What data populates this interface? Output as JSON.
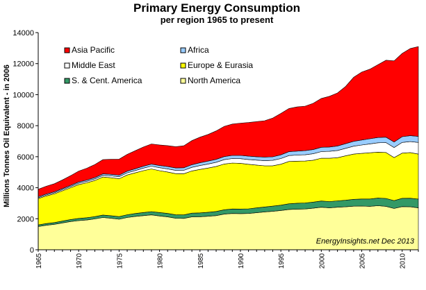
{
  "chart_data": {
    "type": "area",
    "title": "Primary Energy Consumption",
    "subtitle": "per region 1965 to present",
    "ylabel": "Millions Tonnes Oil Equivalent - in 2006",
    "xlabel": "",
    "ylim": [
      0,
      14000
    ],
    "xlim": [
      1965,
      2012
    ],
    "y_ticks": [
      0,
      2000,
      4000,
      6000,
      8000,
      10000,
      12000,
      14000
    ],
    "y_tick_labels": [
      "0",
      "2000",
      "4000",
      "6000",
      "8000",
      "10000",
      "12000",
      "14000"
    ],
    "x_ticks": [
      1965,
      1970,
      1975,
      1980,
      1985,
      1990,
      1995,
      2000,
      2005,
      2010
    ],
    "x_tick_labels": [
      "1965",
      "1970",
      "1975",
      "1980",
      "1985",
      "1990",
      "1995",
      "2000",
      "2005",
      "2010"
    ],
    "grid": "none",
    "legend_position": "top-left",
    "annotation": "EnergyInsights.net  Dec 2013",
    "x": [
      1965,
      1966,
      1967,
      1968,
      1969,
      1970,
      1971,
      1972,
      1973,
      1974,
      1975,
      1976,
      1977,
      1978,
      1979,
      1980,
      1981,
      1982,
      1983,
      1984,
      1985,
      1986,
      1987,
      1988,
      1989,
      1990,
      1991,
      1992,
      1993,
      1994,
      1995,
      1996,
      1997,
      1998,
      1999,
      2000,
      2001,
      2002,
      2003,
      2004,
      2005,
      2006,
      2007,
      2008,
      2009,
      2010,
      2011,
      2012
    ],
    "series": [
      {
        "name": "North America",
        "color": "#ffff99",
        "values": [
          1500,
          1580,
          1640,
          1730,
          1820,
          1880,
          1920,
          1990,
          2080,
          2030,
          1970,
          2080,
          2150,
          2200,
          2250,
          2180,
          2120,
          2030,
          2020,
          2120,
          2130,
          2160,
          2200,
          2300,
          2340,
          2330,
          2340,
          2390,
          2440,
          2480,
          2530,
          2600,
          2620,
          2630,
          2680,
          2740,
          2700,
          2740,
          2770,
          2810,
          2820,
          2800,
          2840,
          2800,
          2660,
          2780,
          2770,
          2700
        ]
      },
      {
        "name": "S. & Cent. America",
        "color": "#339966",
        "values": [
          100,
          110,
          115,
          120,
          130,
          140,
          145,
          150,
          160,
          165,
          170,
          180,
          190,
          200,
          210,
          220,
          225,
          225,
          230,
          240,
          250,
          260,
          270,
          280,
          290,
          295,
          300,
          310,
          320,
          335,
          345,
          365,
          380,
          390,
          395,
          405,
          410,
          415,
          425,
          440,
          455,
          475,
          495,
          510,
          505,
          540,
          555,
          570
        ]
      },
      {
        "name": "Europe & Eurasia",
        "color": "#ffff00",
        "values": [
          1700,
          1780,
          1850,
          1950,
          2050,
          2180,
          2250,
          2330,
          2450,
          2450,
          2440,
          2560,
          2620,
          2700,
          2750,
          2700,
          2670,
          2650,
          2650,
          2720,
          2800,
          2850,
          2900,
          2950,
          2960,
          2950,
          2870,
          2760,
          2650,
          2600,
          2640,
          2730,
          2710,
          2700,
          2700,
          2760,
          2790,
          2780,
          2860,
          2920,
          2940,
          2980,
          2960,
          2960,
          2780,
          2910,
          2940,
          2900
        ]
      },
      {
        "name": "Middle East",
        "color": "#ffffff",
        "values": [
          60,
          65,
          70,
          75,
          80,
          90,
          95,
          100,
          110,
          120,
          130,
          140,
          150,
          165,
          180,
          190,
          200,
          210,
          220,
          235,
          250,
          260,
          270,
          280,
          290,
          300,
          310,
          320,
          335,
          350,
          365,
          380,
          395,
          405,
          415,
          425,
          445,
          465,
          485,
          510,
          540,
          570,
          600,
          640,
          650,
          690,
          710,
          750
        ]
      },
      {
        "name": "Africa",
        "color": "#99ccff",
        "values": [
          60,
          62,
          65,
          70,
          75,
          80,
          84,
          88,
          92,
          96,
          100,
          108,
          115,
          120,
          130,
          140,
          150,
          160,
          165,
          170,
          180,
          185,
          190,
          195,
          205,
          210,
          215,
          220,
          225,
          230,
          240,
          250,
          255,
          265,
          270,
          275,
          280,
          290,
          300,
          310,
          320,
          330,
          340,
          350,
          355,
          370,
          380,
          390
        ]
      },
      {
        "name": "Asia Pacific",
        "color": "#ff0000",
        "values": [
          480,
          500,
          520,
          560,
          620,
          700,
          760,
          840,
          920,
          970,
          1030,
          1080,
          1160,
          1240,
          1300,
          1330,
          1350,
          1370,
          1420,
          1550,
          1650,
          1720,
          1830,
          1950,
          2020,
          2080,
          2170,
          2260,
          2350,
          2500,
          2670,
          2780,
          2850,
          2870,
          2980,
          3150,
          3270,
          3420,
          3690,
          4130,
          4380,
          4490,
          4700,
          4960,
          5230,
          5370,
          5620,
          5790
        ]
      }
    ],
    "legend_order": [
      "Asia Pacific",
      "Africa",
      "Middle East",
      "Europe & Eurasia",
      "S. & Cent. America",
      "North America"
    ]
  }
}
